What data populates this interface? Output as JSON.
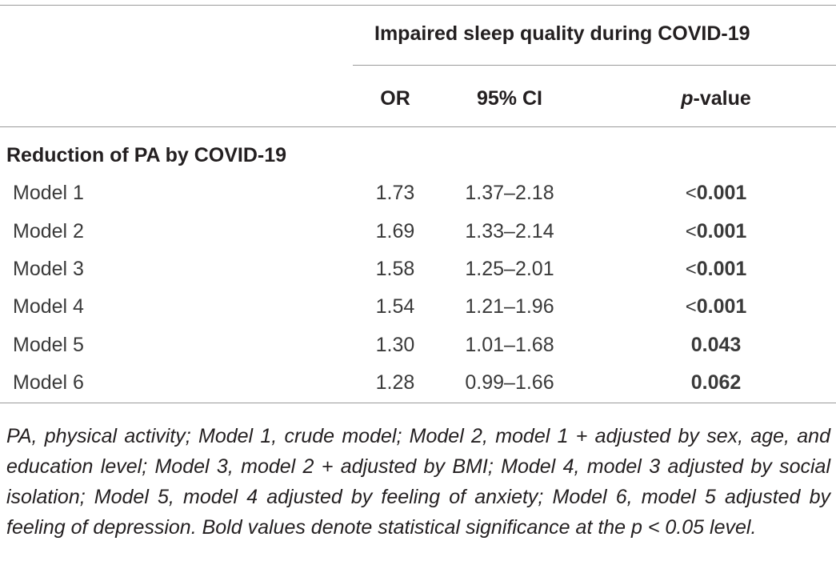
{
  "table": {
    "group_header": "Impaired sleep quality during COVID-19",
    "columns": {
      "or": "OR",
      "ci": "95% CI",
      "p_italic": "p",
      "p_rest": "-value"
    },
    "section_label": "Reduction of PA by COVID-19",
    "rows": [
      {
        "model": "Model 1",
        "or": "1.73",
        "ci": "1.37–2.18",
        "p_prefix": "<",
        "p": "0.001"
      },
      {
        "model": "Model 2",
        "or": "1.69",
        "ci": "1.33–2.14",
        "p_prefix": "<",
        "p": "0.001"
      },
      {
        "model": "Model 3",
        "or": "1.58",
        "ci": "1.25–2.01",
        "p_prefix": "<",
        "p": "0.001"
      },
      {
        "model": "Model 4",
        "or": "1.54",
        "ci": "1.21–1.96",
        "p_prefix": "<",
        "p": "0.001"
      },
      {
        "model": "Model 5",
        "or": "1.30",
        "ci": "1.01–1.68",
        "p_prefix": "",
        "p": "0.043"
      },
      {
        "model": "Model 6",
        "or": "1.28",
        "ci": "0.99–1.66",
        "p_prefix": "",
        "p": "0.062"
      }
    ],
    "footnote": "PA, physical activity; Model 1, crude model; Model 2, model 1 + adjusted by sex, age, and education level; Model 3, model 2 + adjusted by BMI; Model 4, model 3 adjusted by social isolation; Model 5, model 4 adjusted by feeling of anxiety; Model 6, model 5 adjusted by feeling of depression. Bold values denote statistical significance at the p < 0.05 level."
  }
}
